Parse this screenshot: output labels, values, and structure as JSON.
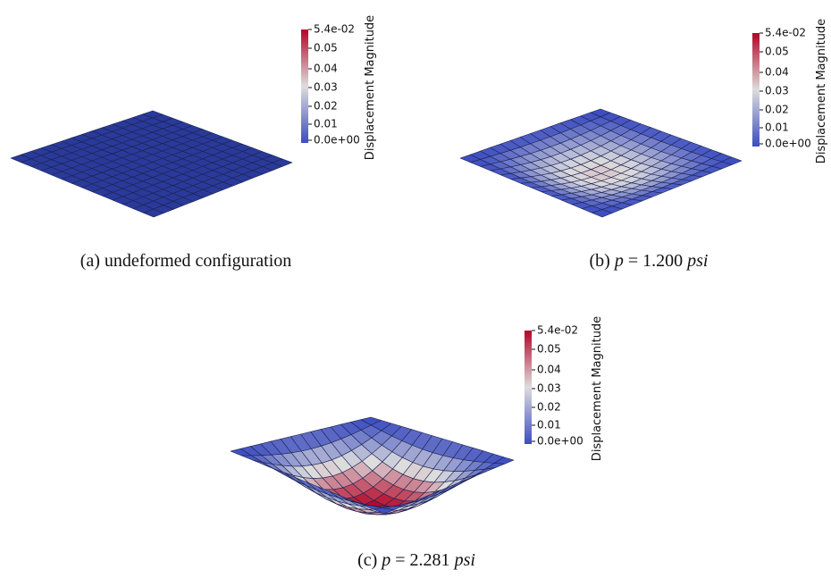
{
  "panels": [
    {
      "caption": [
        "(a) undeformed configuration"
      ],
      "colorbar": {
        "title": "Displacement Magnitude",
        "ticks": [
          "5.4e-02",
          "0.05",
          "0.04",
          "0.03",
          "0.02",
          "0.01",
          "0.0e+00"
        ]
      }
    },
    {
      "caption": [
        "(b) ",
        "p",
        " = 1.200 ",
        "psi"
      ],
      "colorbar": {
        "title": "Displacement Magnitude",
        "ticks": [
          "5.4e-02",
          "0.05",
          "0.04",
          "0.03",
          "0.02",
          "0.01",
          "0.0e+00"
        ]
      }
    },
    {
      "caption": [
        "(c) ",
        "p",
        " = 2.281 ",
        "psi"
      ],
      "colorbar": {
        "title": "Displacement Magnitude",
        "ticks": [
          "5.4e-02",
          "0.05",
          "0.04",
          "0.03",
          "0.02",
          "0.01",
          "0.0e+00"
        ]
      }
    }
  ]
}
